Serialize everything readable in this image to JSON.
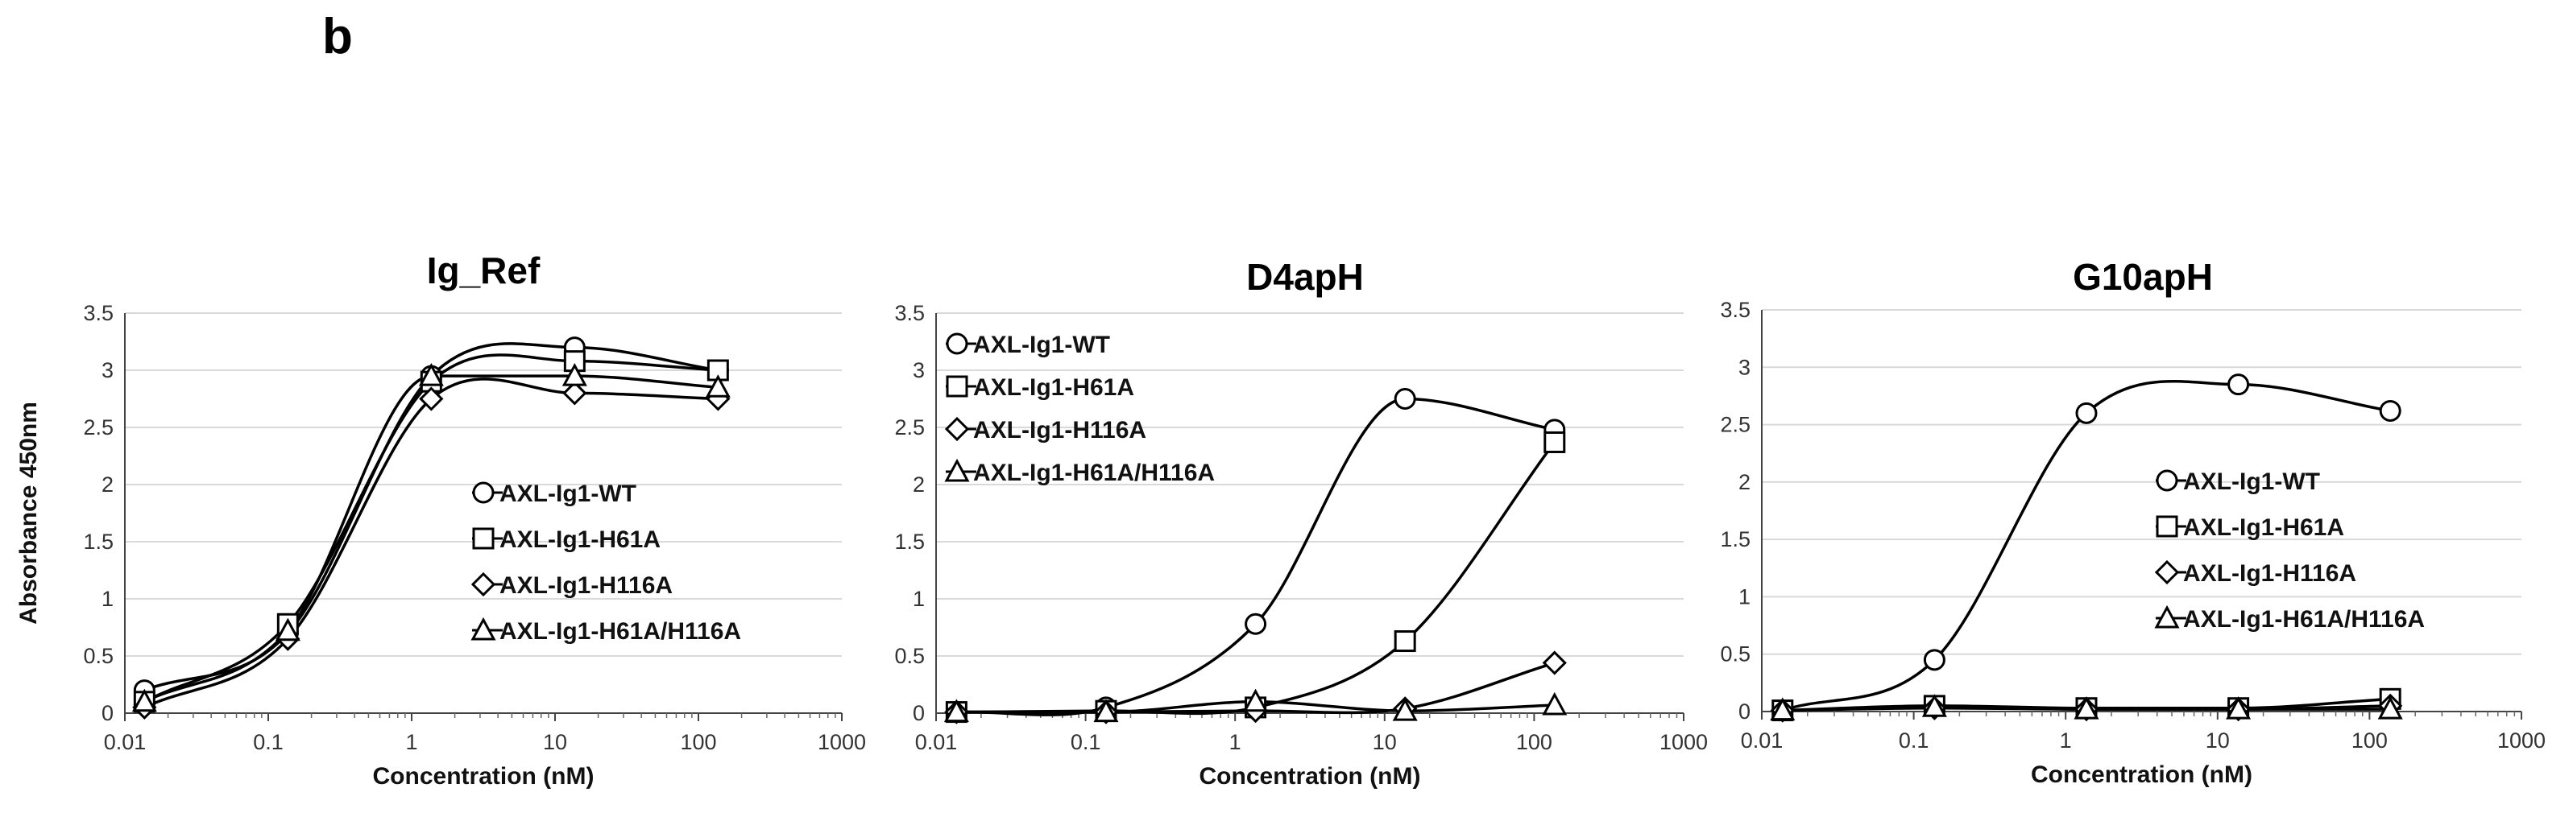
{
  "panel_label": "b",
  "style": {
    "line_color": "#000000",
    "marker_fill": "#ffffff",
    "grid_color": "#d9d9d9"
  },
  "chart_data": [
    {
      "type": "line",
      "title": "Ig_Ref",
      "xlabel": "Concentration (nM)",
      "ylabel": "Absorbance 450nm",
      "xscale": "log",
      "xlim": [
        0.01,
        1000
      ],
      "ylim": [
        0,
        3.5
      ],
      "xticks": [
        "0.01",
        "0.1",
        "1",
        "10",
        "100",
        "1000"
      ],
      "yticks": [
        "0",
        "0.5",
        "1",
        "1.5",
        "2",
        "2.5",
        "3",
        "3.5"
      ],
      "grid": "horizontal",
      "legend_position": "center-right",
      "x": [
        0.0137,
        0.137,
        1.37,
        13.7,
        137
      ],
      "series": [
        {
          "name": "AXL-Ig1-WT",
          "marker": "circle",
          "values": [
            0.2,
            0.7,
            2.95,
            3.2,
            3.0
          ]
        },
        {
          "name": "AXL-Ig1-H61A",
          "marker": "square",
          "values": [
            0.1,
            0.78,
            2.9,
            3.08,
            3.0
          ]
        },
        {
          "name": "AXL-Ig1-H116A",
          "marker": "diamond",
          "values": [
            0.05,
            0.65,
            2.75,
            2.8,
            2.75
          ]
        },
        {
          "name": "AXL-Ig1-H61A/H116A",
          "marker": "triangle",
          "values": [
            0.1,
            0.72,
            2.95,
            2.95,
            2.85
          ]
        }
      ]
    },
    {
      "type": "line",
      "title": "D4apH",
      "xlabel": "Concentration (nM)",
      "ylabel": "",
      "xscale": "log",
      "xlim": [
        0.01,
        1000
      ],
      "ylim": [
        0,
        3.5
      ],
      "xticks": [
        "0.01",
        "0.1",
        "1",
        "10",
        "100",
        "1000"
      ],
      "yticks": [
        "0",
        "0.5",
        "1",
        "1.5",
        "2",
        "2.5",
        "3",
        "3.5"
      ],
      "grid": "horizontal",
      "legend_position": "top-left",
      "x": [
        0.0137,
        0.137,
        1.37,
        13.7,
        137
      ],
      "series": [
        {
          "name": "AXL-Ig1-WT",
          "marker": "circle",
          "values": [
            0.01,
            0.05,
            0.78,
            2.75,
            2.48
          ]
        },
        {
          "name": "AXL-Ig1-H61A",
          "marker": "square",
          "values": [
            0.01,
            0.02,
            0.05,
            0.63,
            2.37
          ]
        },
        {
          "name": "AXL-Ig1-H116A",
          "marker": "diamond",
          "values": [
            0.01,
            0.01,
            0.02,
            0.04,
            0.44
          ]
        },
        {
          "name": "AXL-Ig1-H61A/H116A",
          "marker": "triangle",
          "values": [
            0.01,
            0.01,
            0.1,
            0.02,
            0.07
          ]
        }
      ]
    },
    {
      "type": "line",
      "title": "G10apH",
      "xlabel": "Concentration (nM)",
      "ylabel": "",
      "xscale": "log",
      "xlim": [
        0.01,
        1000
      ],
      "ylim": [
        0,
        3.5
      ],
      "xticks": [
        "0.01",
        "0.1",
        "1",
        "10",
        "100",
        "1000"
      ],
      "yticks": [
        "0",
        "0.5",
        "1",
        "1.5",
        "2",
        "2.5",
        "3",
        "3.5"
      ],
      "grid": "horizontal",
      "legend_position": "center-right",
      "x": [
        0.0137,
        0.137,
        1.37,
        13.7,
        137
      ],
      "series": [
        {
          "name": "AXL-Ig1-WT",
          "marker": "circle",
          "values": [
            0.01,
            0.45,
            2.6,
            2.85,
            2.62
          ]
        },
        {
          "name": "AXL-Ig1-H61A",
          "marker": "square",
          "values": [
            0.01,
            0.05,
            0.03,
            0.03,
            0.11
          ]
        },
        {
          "name": "AXL-Ig1-H116A",
          "marker": "diamond",
          "values": [
            0.01,
            0.03,
            0.02,
            0.02,
            0.05
          ]
        },
        {
          "name": "AXL-Ig1-H61A/H116A",
          "marker": "triangle",
          "values": [
            0.01,
            0.04,
            0.02,
            0.02,
            0.02
          ]
        }
      ]
    }
  ]
}
